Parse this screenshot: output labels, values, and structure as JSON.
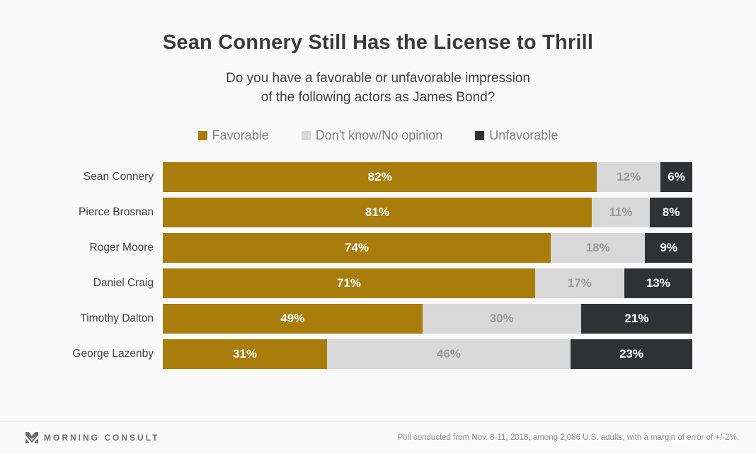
{
  "header": {
    "title": "Sean Connery Still Has the License to Thrill",
    "subtitle_lines": [
      "Do you have a favorable or unfavorable impression",
      "of the following actors as James Bond?"
    ]
  },
  "colors": {
    "favorable": "#A87D0B",
    "dont_know": "#D8D8D8",
    "unfavorable": "#2F3135",
    "label_on_gold": "#FFFFFF",
    "label_on_gray": "#9B9B9B",
    "label_on_dark": "#FFFFFF"
  },
  "chart_data": {
    "type": "bar",
    "stacked": true,
    "orientation": "horizontal",
    "value_suffix": "%",
    "xlim": [
      0,
      100
    ],
    "grid": false,
    "legend_position": "top-center",
    "categories": [
      "Sean Connery",
      "Pierce Brosnan",
      "Roger Moore",
      "Daniel Craig",
      "Timothy Dalton",
      "George Lazenby"
    ],
    "series": [
      {
        "name": "Favorable",
        "color": "#A87D0B",
        "text_color": "#FFFFFF",
        "values": [
          82,
          81,
          74,
          71,
          49,
          31
        ]
      },
      {
        "name": "Don't know/No opinion",
        "color": "#D8D8D8",
        "text_color": "#9B9B9B",
        "values": [
          12,
          11,
          18,
          17,
          30,
          46
        ]
      },
      {
        "name": "Unfavorable",
        "color": "#2F3135",
        "text_color": "#FFFFFF",
        "values": [
          6,
          8,
          9,
          13,
          21,
          23
        ]
      }
    ]
  },
  "footer": {
    "brand": "MORNING CONSULT",
    "note": "Poll conducted from Nov. 8-11, 2018, among 2,086 U.S. adults, with a margin of error of +/-2%."
  }
}
